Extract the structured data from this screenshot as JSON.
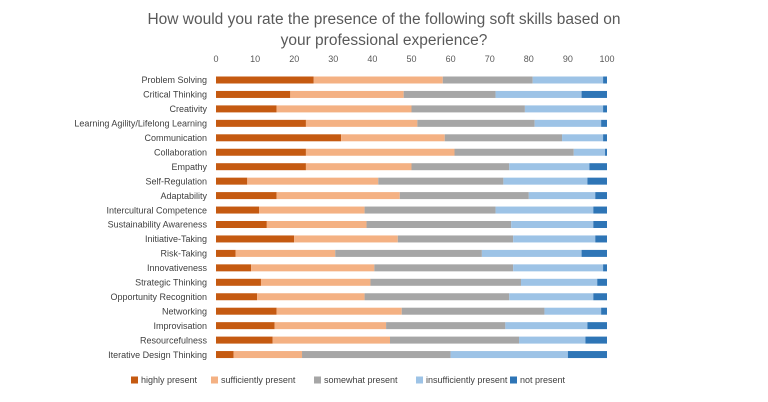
{
  "chart_data": {
    "type": "bar",
    "orientation": "horizontal",
    "stacked": true,
    "title": "How would you rate the presence of the following soft skills based on your professional experience?",
    "title_lines": [
      "How would you rate the presence of the following soft skills based on",
      "your professional experience?"
    ],
    "xlim": [
      0,
      100
    ],
    "x_ticks": [
      0,
      10,
      20,
      30,
      40,
      50,
      60,
      70,
      80,
      90,
      100
    ],
    "x_axis_position": "top",
    "grid": false,
    "legend_position": "bottom",
    "categories": [
      "Problem Solving",
      "Critical Thinking",
      "Creativity",
      "Learning Agility/Lifelong Learning",
      "Communication",
      "Collaboration",
      "Empathy",
      "Self-Regulation",
      "Adaptability",
      "Intercultural Competence",
      "Sustainability Awareness",
      "Initiative-Taking",
      "Risk-Taking",
      "Innovativeness",
      "Strategic Thinking",
      "Opportunity Recognition",
      "Networking",
      "Improvisation",
      "Resourcefulness",
      "Iterative Design Thinking"
    ],
    "series": [
      {
        "name": "highly present",
        "color": "#C55A11",
        "values": [
          25,
          19,
          15.5,
          23,
          32,
          23,
          23,
          8,
          15.5,
          11,
          13,
          20,
          5,
          9,
          11.5,
          10.5,
          15.5,
          15,
          14.5,
          4.5
        ]
      },
      {
        "name": "sufficiently present",
        "color": "#F4B183",
        "values": [
          33,
          29,
          34.5,
          28.5,
          26.5,
          38,
          27,
          33.5,
          31.5,
          27,
          25.5,
          26.5,
          25.5,
          31.5,
          28,
          27.5,
          32,
          28.5,
          30,
          17.5
        ]
      },
      {
        "name": "somewhat present",
        "color": "#A6A6A6",
        "values": [
          23,
          23.5,
          29,
          30,
          30,
          30.5,
          25,
          32,
          33,
          33.5,
          37,
          29.5,
          37.5,
          35.5,
          38.5,
          37,
          36.5,
          30.5,
          33,
          38
        ]
      },
      {
        "name": "insufficiently present",
        "color": "#9DC3E6",
        "values": [
          18,
          22,
          20,
          17,
          10.5,
          8,
          20.5,
          21.5,
          17,
          25,
          21,
          21,
          25.5,
          23,
          19.5,
          21.5,
          14.5,
          21,
          17,
          30
        ]
      },
      {
        "name": "not present",
        "color": "#2E75B6",
        "values": [
          1,
          6.5,
          1,
          1.5,
          1,
          0.5,
          4.5,
          5,
          3,
          3.5,
          3.5,
          3,
          6.5,
          1,
          2.5,
          3.5,
          1.5,
          5,
          5.5,
          10
        ]
      }
    ]
  }
}
